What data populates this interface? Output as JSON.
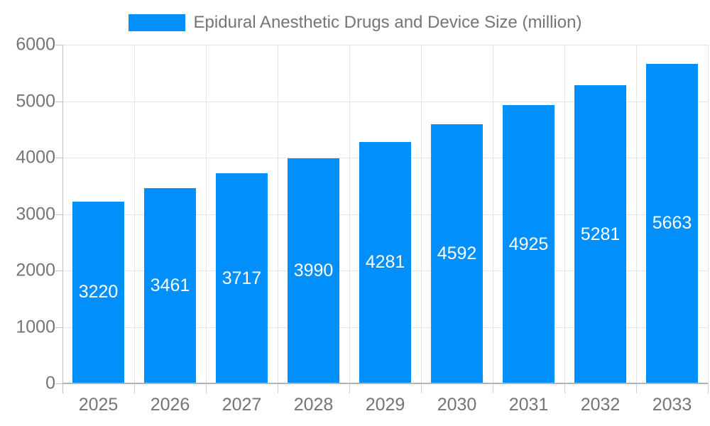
{
  "chart_data": {
    "type": "bar",
    "title": "Epidural Anesthetic Drugs and Device Size (million)",
    "categories": [
      "2025",
      "2026",
      "2027",
      "2028",
      "2029",
      "2030",
      "2031",
      "2032",
      "2033"
    ],
    "values": [
      3220,
      3461,
      3717,
      3990,
      4281,
      4592,
      4925,
      5281,
      5663
    ],
    "series": [
      {
        "name": "Epidural Anesthetic Drugs and Device Size (million)",
        "values": [
          3220,
          3461,
          3717,
          3990,
          4281,
          4592,
          4925,
          5281,
          5663
        ]
      }
    ],
    "xlabel": "",
    "ylabel": "",
    "ylim": [
      0,
      6000
    ],
    "yticks": [
      0,
      1000,
      2000,
      3000,
      4000,
      5000,
      6000
    ],
    "grid": true,
    "legend_position": "top-center",
    "value_labels": "centered-inside-bars",
    "colors": {
      "bar": "#008FFB",
      "value_label": "#FFFFFF",
      "axis_label": "#757575",
      "gridline": "#E4E4E4",
      "axis_line": "#B3B3B3"
    }
  }
}
